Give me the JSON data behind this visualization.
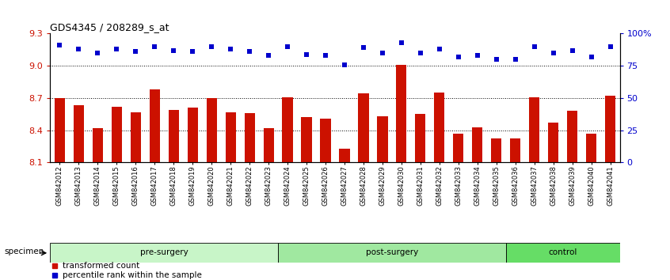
{
  "title": "GDS4345 / 208289_s_at",
  "samples": [
    "GSM842012",
    "GSM842013",
    "GSM842014",
    "GSM842015",
    "GSM842016",
    "GSM842017",
    "GSM842018",
    "GSM842019",
    "GSM842020",
    "GSM842021",
    "GSM842022",
    "GSM842023",
    "GSM842024",
    "GSM842025",
    "GSM842026",
    "GSM842027",
    "GSM842028",
    "GSM842029",
    "GSM842030",
    "GSM842031",
    "GSM842032",
    "GSM842033",
    "GSM842034",
    "GSM842035",
    "GSM842036",
    "GSM842037",
    "GSM842038",
    "GSM842039",
    "GSM842040",
    "GSM842041"
  ],
  "bar_values": [
    8.7,
    8.63,
    8.42,
    8.62,
    8.57,
    8.78,
    8.59,
    8.61,
    8.7,
    8.57,
    8.56,
    8.42,
    8.71,
    8.52,
    8.51,
    8.23,
    8.74,
    8.53,
    9.01,
    8.55,
    8.75,
    8.37,
    8.43,
    8.32,
    8.32,
    8.71,
    8.47,
    8.58,
    8.37,
    8.72
  ],
  "percentile_values": [
    91,
    88,
    85,
    88,
    86,
    90,
    87,
    86,
    90,
    88,
    86,
    83,
    90,
    84,
    83,
    76,
    89,
    85,
    93,
    85,
    88,
    82,
    83,
    80,
    80,
    90,
    85,
    87,
    82,
    90
  ],
  "groups": [
    {
      "label": "pre-surgery",
      "start": 0,
      "end": 12,
      "color": "#c8f5c8"
    },
    {
      "label": "post-surgery",
      "start": 12,
      "end": 24,
      "color": "#a0e8a0"
    },
    {
      "label": "control",
      "start": 24,
      "end": 30,
      "color": "#66dd66"
    }
  ],
  "ylim": [
    8.1,
    9.3
  ],
  "yticks": [
    8.1,
    8.4,
    8.7,
    9.0,
    9.3
  ],
  "y2lim": [
    0,
    100
  ],
  "y2ticks": [
    0,
    25,
    50,
    75,
    100
  ],
  "y2tick_labels": [
    "0",
    "25",
    "50",
    "75",
    "100%"
  ],
  "dotted_lines": [
    9.0,
    8.7,
    8.4
  ],
  "bar_color": "#cc1100",
  "dot_color": "#0000cc",
  "bar_width": 0.55,
  "bg_color": "#ffffff",
  "title_color": "#000000",
  "legend_items": [
    {
      "label": "transformed count",
      "color": "#cc1100"
    },
    {
      "label": "percentile rank within the sample",
      "color": "#0000cc"
    }
  ],
  "specimen_label": "specimen"
}
